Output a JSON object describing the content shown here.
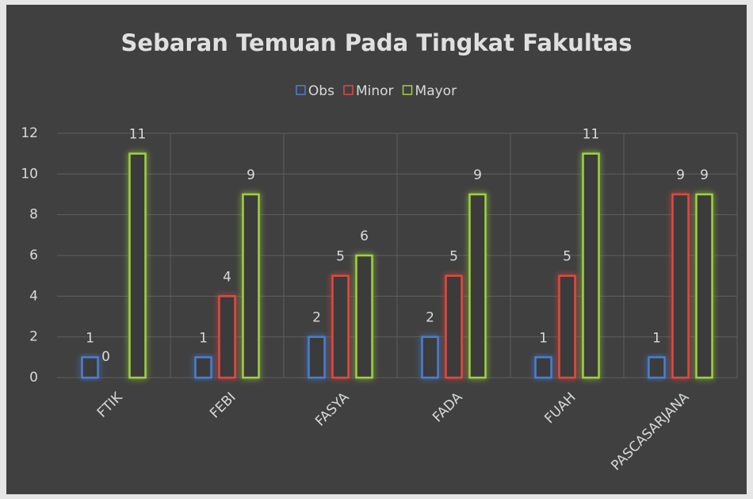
{
  "chart_data": {
    "type": "bar",
    "title": "Sebaran Temuan Pada Tingkat Fakultas",
    "categories": [
      "FTIK",
      "FEBI",
      "FASYA",
      "FADA",
      "FUAH",
      "PASCASARJANA"
    ],
    "series": [
      {
        "name": "Obs",
        "color": "#4a7fd0",
        "values": [
          1,
          1,
          2,
          2,
          1,
          1
        ]
      },
      {
        "name": "Minor",
        "color": "#e0483f",
        "values": [
          0,
          4,
          5,
          5,
          5,
          9
        ]
      },
      {
        "name": "Mayor",
        "color": "#9fd23c",
        "values": [
          11,
          9,
          6,
          9,
          11,
          9
        ]
      }
    ],
    "ylim": [
      0,
      12
    ],
    "yticks": [
      0,
      2,
      4,
      6,
      8,
      10,
      12
    ],
    "grid": true,
    "legend": "top"
  }
}
